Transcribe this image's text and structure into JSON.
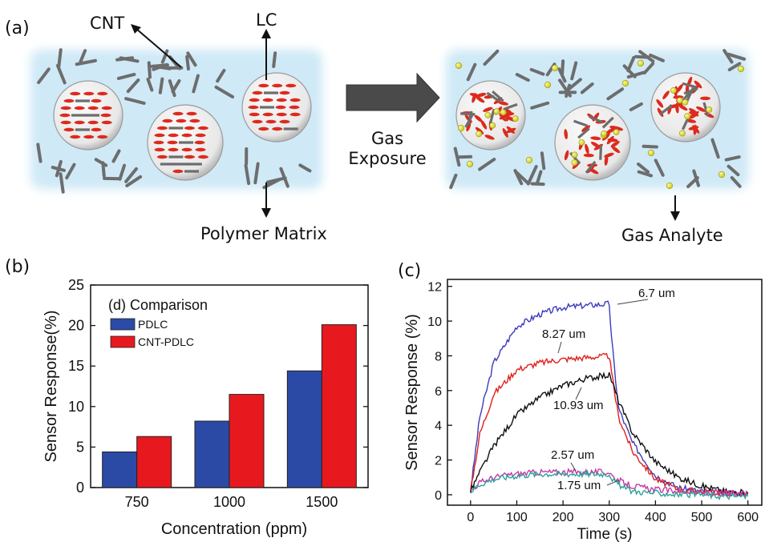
{
  "panel_a": {
    "panel_label": "(a)",
    "cnt_label": "CNT",
    "lc_label": "LC",
    "polymer_label": "Polymer Matrix",
    "gas_label_line1": "Gas",
    "gas_label_line2": "Exposure",
    "analyte_label": "Gas Analyte",
    "colors": {
      "matrix": "#cfe9f7",
      "lc": "#dd2a1d",
      "cnt": "#6d6d6d",
      "gas": "#e3e13c",
      "arrow": "#4a4a4a"
    }
  },
  "panel_b": {
    "panel_label": "(b)"
  },
  "panel_c": {
    "panel_label": "(c)"
  },
  "chart_data": [
    {
      "type": "bar",
      "title": "(d) Comparison",
      "xlabel": "Concentration (ppm)",
      "ylabel": "Sensor Response(%)",
      "categories": [
        "750",
        "1000",
        "1500"
      ],
      "ylim": [
        0,
        25
      ],
      "yticks": [
        "0",
        "5",
        "10",
        "15",
        "20",
        "25"
      ],
      "legend_position": "top-left",
      "series": [
        {
          "name": "PDLC",
          "color": "#2b4aa6",
          "values": [
            4.4,
            8.2,
            14.4
          ]
        },
        {
          "name": "CNT-PDLC",
          "color": "#e8191e",
          "values": [
            6.3,
            11.5,
            20.1
          ]
        }
      ]
    },
    {
      "type": "line",
      "xlabel": "Time (s)",
      "ylabel": "Sensor Response (%)",
      "xlim": [
        -50,
        630
      ],
      "ylim": [
        -0.6,
        12.4
      ],
      "xticks": [
        "0",
        "100",
        "200",
        "300",
        "400",
        "500",
        "600"
      ],
      "yticks": [
        "0",
        "2",
        "4",
        "6",
        "8",
        "10",
        "12"
      ],
      "series": [
        {
          "name": "6.7 um",
          "color": "#3b3bbf",
          "x": [
            0,
            20,
            50,
            100,
            150,
            200,
            250,
            300,
            305,
            320,
            350,
            400,
            450,
            500,
            550,
            600
          ],
          "y": [
            0.2,
            4.5,
            7.6,
            9.7,
            10.4,
            10.8,
            10.9,
            11.0,
            9.0,
            5.0,
            3.0,
            1.1,
            0.4,
            0.2,
            0.1,
            0.1
          ]
        },
        {
          "name": "8.27 um",
          "color": "#e0201b",
          "x": [
            0,
            20,
            50,
            100,
            150,
            200,
            250,
            300,
            305,
            320,
            350,
            400,
            450,
            500,
            550,
            600
          ],
          "y": [
            0.2,
            3.5,
            5.8,
            7.2,
            7.6,
            7.8,
            7.9,
            8.0,
            7.0,
            4.5,
            2.5,
            0.9,
            0.3,
            0.2,
            0.1,
            0.1
          ]
        },
        {
          "name": "10.93 um",
          "color": "#111111",
          "x": [
            0,
            20,
            50,
            100,
            150,
            200,
            250,
            300,
            305,
            320,
            350,
            400,
            450,
            500,
            550,
            600
          ],
          "y": [
            0.2,
            1.3,
            2.8,
            4.6,
            5.6,
            6.3,
            6.7,
            6.9,
            6.6,
            5.4,
            3.6,
            1.9,
            1.0,
            0.5,
            0.2,
            0.1
          ]
        },
        {
          "name": "2.57 um",
          "color": "#c53aa8",
          "x": [
            0,
            20,
            50,
            100,
            150,
            200,
            250,
            300,
            310,
            330,
            350,
            400,
            450,
            500,
            550,
            600
          ],
          "y": [
            0.2,
            0.7,
            1.0,
            1.2,
            1.3,
            1.3,
            1.3,
            1.3,
            1.0,
            0.7,
            0.5,
            0.3,
            0.2,
            0.1,
            0.1,
            0.0
          ]
        },
        {
          "name": "1.75 um",
          "color": "#2aa39a",
          "x": [
            0,
            20,
            50,
            100,
            150,
            200,
            250,
            300,
            310,
            330,
            350,
            400,
            450,
            500,
            550,
            600
          ],
          "y": [
            0.2,
            0.6,
            0.9,
            1.1,
            1.2,
            1.2,
            1.2,
            1.2,
            0.8,
            0.4,
            0.2,
            0.1,
            0.0,
            0.0,
            -0.1,
            -0.1
          ]
        }
      ]
    }
  ]
}
